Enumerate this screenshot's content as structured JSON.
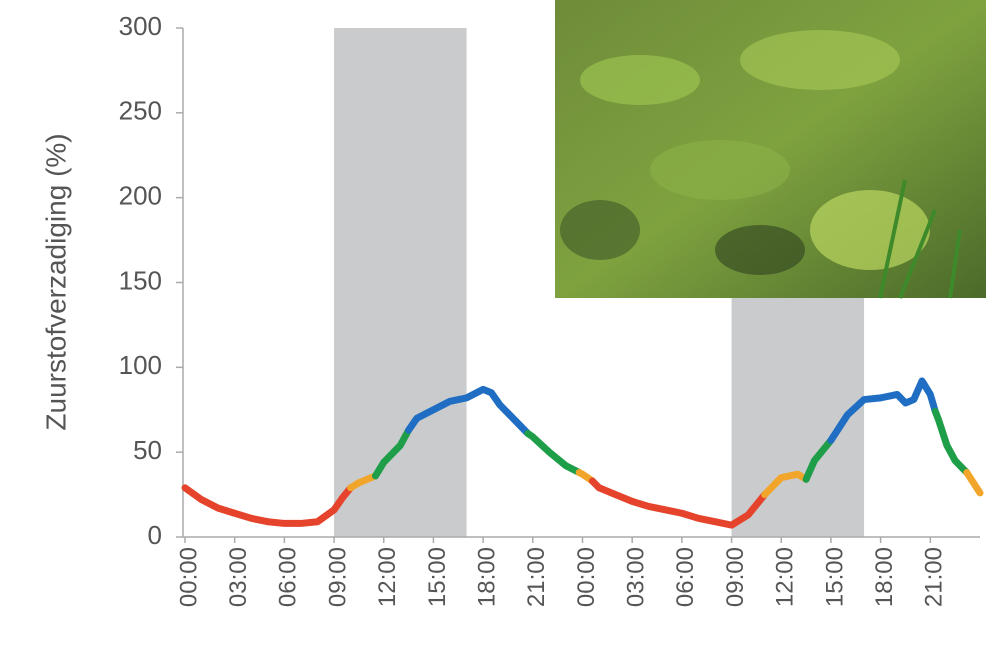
{
  "chart_data": {
    "type": "line",
    "y_label": "Zuurstofverzadiging (%)",
    "xlim": [
      0,
      48
    ],
    "ylim": [
      0,
      300
    ],
    "yticks": [
      0,
      50,
      100,
      150,
      200,
      250,
      300
    ],
    "xticks": [
      {
        "value": 0,
        "label": "00:00"
      },
      {
        "value": 3,
        "label": "03:00"
      },
      {
        "value": 6,
        "label": "06:00"
      },
      {
        "value": 9,
        "label": "09:00"
      },
      {
        "value": 12,
        "label": "12:00"
      },
      {
        "value": 15,
        "label": "15:00"
      },
      {
        "value": 18,
        "label": "18:00"
      },
      {
        "value": 21,
        "label": "21:00"
      },
      {
        "value": 24,
        "label": "00:00"
      },
      {
        "value": 27,
        "label": "03:00"
      },
      {
        "value": 30,
        "label": "06:00"
      },
      {
        "value": 33,
        "label": "09:00"
      },
      {
        "value": 36,
        "label": "12:00"
      },
      {
        "value": 39,
        "label": "15:00"
      },
      {
        "value": 42,
        "label": "18:00"
      },
      {
        "value": 45,
        "label": "21:00"
      }
    ],
    "shaded": [
      {
        "x": [
          9,
          17
        ],
        "color": "#c9cbcd"
      },
      {
        "x": [
          33,
          41
        ],
        "color": "#c9cbcd"
      }
    ],
    "segments": [
      {
        "color": "#e5432b",
        "x": [
          0,
          1,
          2,
          3,
          4,
          5,
          6,
          7,
          8,
          9,
          9.5,
          10
        ],
        "values": [
          29,
          22,
          17,
          14,
          11,
          9,
          8,
          8,
          9,
          16,
          23,
          29
        ]
      },
      {
        "color": "#f2a52b",
        "x": [
          10,
          10.5,
          11,
          11.5
        ],
        "values": [
          29,
          32,
          34,
          36
        ]
      },
      {
        "color": "#1f9e4a",
        "x": [
          11.5,
          12,
          13,
          13.5
        ],
        "values": [
          36,
          44,
          54,
          63
        ]
      },
      {
        "color": "#1f6ec3",
        "x": [
          13.5,
          14,
          15,
          16,
          17,
          18,
          18.5,
          19,
          20,
          20.7
        ],
        "values": [
          63,
          70,
          75,
          80,
          82,
          87,
          85,
          78,
          68,
          61
        ]
      },
      {
        "color": "#1f9e4a",
        "x": [
          20.7,
          21,
          22,
          23,
          23.8
        ],
        "values": [
          61,
          59,
          50,
          42,
          38
        ]
      },
      {
        "color": "#f2a52b",
        "x": [
          23.8,
          24,
          24.6
        ],
        "values": [
          38,
          37,
          33
        ]
      },
      {
        "color": "#e5432b",
        "x": [
          24.6,
          25,
          26,
          27,
          28,
          29,
          30,
          31,
          32,
          33,
          34,
          35
        ],
        "values": [
          33,
          29,
          25,
          21,
          18,
          16,
          14,
          11,
          9,
          7,
          13,
          25
        ]
      },
      {
        "color": "#f2a52b",
        "x": [
          35,
          36,
          37,
          37.5
        ],
        "values": [
          25,
          35,
          37,
          34
        ]
      },
      {
        "color": "#1f9e4a",
        "x": [
          37.5,
          38,
          39
        ],
        "values": [
          34,
          45,
          57
        ]
      },
      {
        "color": "#1f6ec3",
        "x": [
          39,
          40,
          41,
          42,
          43,
          43.5,
          44,
          44.5,
          45,
          45.3
        ],
        "values": [
          57,
          72,
          81,
          82,
          84,
          79,
          81,
          92,
          84,
          74
        ]
      },
      {
        "color": "#1f9e4a",
        "x": [
          45.3,
          45.5,
          46,
          46.5,
          47,
          47.2
        ],
        "values": [
          74,
          69,
          54,
          45,
          40,
          38
        ]
      },
      {
        "color": "#f2a52b",
        "x": [
          47.2,
          48
        ],
        "values": [
          38,
          26
        ]
      }
    ]
  }
}
